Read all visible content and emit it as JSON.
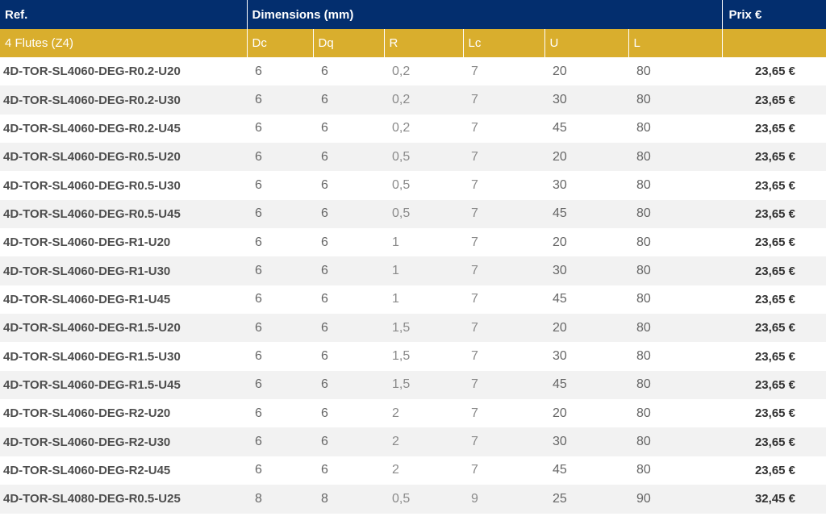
{
  "header": {
    "ref_label": "Ref.",
    "dimensions_label": "Dimensions (mm)",
    "price_label": "Prix €"
  },
  "subheader": {
    "group_label": "4 Flutes (Z4)",
    "columns": [
      "Dc",
      "Dq",
      "R",
      "Lc",
      "U",
      "L"
    ]
  },
  "rows": [
    {
      "ref": "4D-TOR-SL4060-DEG-R0.2-U20",
      "dc": "6",
      "dq": "6",
      "r": "0,2",
      "lc": "7",
      "u": "20",
      "l": "80",
      "price": "23,65 €"
    },
    {
      "ref": "4D-TOR-SL4060-DEG-R0.2-U30",
      "dc": "6",
      "dq": "6",
      "r": "0,2",
      "lc": "7",
      "u": "30",
      "l": "80",
      "price": "23,65 €"
    },
    {
      "ref": "4D-TOR-SL4060-DEG-R0.2-U45",
      "dc": "6",
      "dq": "6",
      "r": "0,2",
      "lc": "7",
      "u": "45",
      "l": "80",
      "price": "23,65 €"
    },
    {
      "ref": "4D-TOR-SL4060-DEG-R0.5-U20",
      "dc": "6",
      "dq": "6",
      "r": "0,5",
      "lc": "7",
      "u": "20",
      "l": "80",
      "price": "23,65 €"
    },
    {
      "ref": "4D-TOR-SL4060-DEG-R0.5-U30",
      "dc": "6",
      "dq": "6",
      "r": "0,5",
      "lc": "7",
      "u": "30",
      "l": "80",
      "price": "23,65 €"
    },
    {
      "ref": "4D-TOR-SL4060-DEG-R0.5-U45",
      "dc": "6",
      "dq": "6",
      "r": "0,5",
      "lc": "7",
      "u": "45",
      "l": "80",
      "price": "23,65 €"
    },
    {
      "ref": "4D-TOR-SL4060-DEG-R1-U20",
      "dc": "6",
      "dq": "6",
      "r": "1",
      "lc": "7",
      "u": "20",
      "l": "80",
      "price": "23,65 €"
    },
    {
      "ref": "4D-TOR-SL4060-DEG-R1-U30",
      "dc": "6",
      "dq": "6",
      "r": "1",
      "lc": "7",
      "u": "30",
      "l": "80",
      "price": "23,65 €"
    },
    {
      "ref": "4D-TOR-SL4060-DEG-R1-U45",
      "dc": "6",
      "dq": "6",
      "r": "1",
      "lc": "7",
      "u": "45",
      "l": "80",
      "price": "23,65 €"
    },
    {
      "ref": "4D-TOR-SL4060-DEG-R1.5-U20",
      "dc": "6",
      "dq": "6",
      "r": "1,5",
      "lc": "7",
      "u": "20",
      "l": "80",
      "price": "23,65 €"
    },
    {
      "ref": "4D-TOR-SL4060-DEG-R1.5-U30",
      "dc": "6",
      "dq": "6",
      "r": "1,5",
      "lc": "7",
      "u": "30",
      "l": "80",
      "price": "23,65 €"
    },
    {
      "ref": "4D-TOR-SL4060-DEG-R1.5-U45",
      "dc": "6",
      "dq": "6",
      "r": "1,5",
      "lc": "7",
      "u": "45",
      "l": "80",
      "price": "23,65 €"
    },
    {
      "ref": "4D-TOR-SL4060-DEG-R2-U20",
      "dc": "6",
      "dq": "6",
      "r": "2",
      "lc": "7",
      "u": "20",
      "l": "80",
      "price": "23,65 €"
    },
    {
      "ref": "4D-TOR-SL4060-DEG-R2-U30",
      "dc": "6",
      "dq": "6",
      "r": "2",
      "lc": "7",
      "u": "30",
      "l": "80",
      "price": "23,65 €"
    },
    {
      "ref": "4D-TOR-SL4060-DEG-R2-U45",
      "dc": "6",
      "dq": "6",
      "r": "2",
      "lc": "7",
      "u": "45",
      "l": "80",
      "price": "23,65 €"
    },
    {
      "ref": "4D-TOR-SL4080-DEG-R0.5-U25",
      "dc": "8",
      "dq": "8",
      "r": "0,5",
      "lc": "9",
      "u": "25",
      "l": "90",
      "price": "32,45 €"
    }
  ],
  "colors": {
    "header_bg": "#032e6e",
    "subheader_bg": "#d9ae2d",
    "stripe_bg": "#f2f2f2"
  }
}
